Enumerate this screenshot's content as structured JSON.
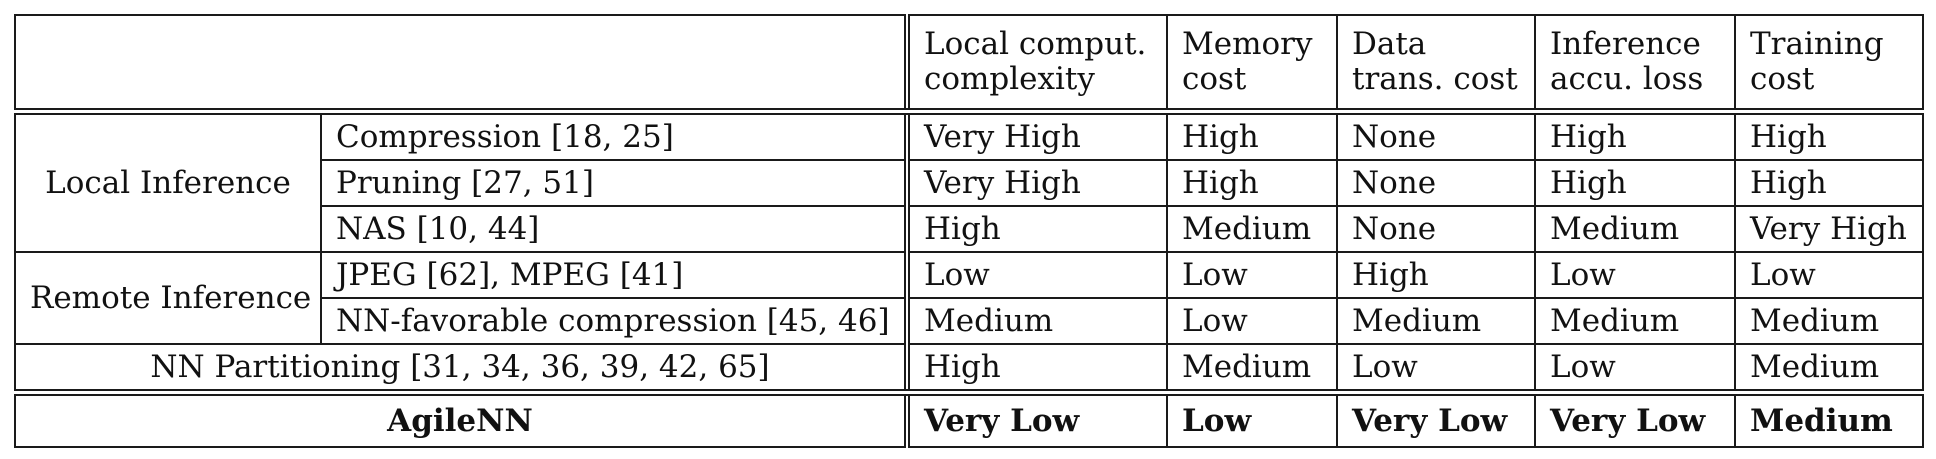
{
  "header": {
    "columns": [
      [
        "Local comput.",
        "complexity"
      ],
      [
        "Memory",
        "cost"
      ],
      [
        "Data",
        "trans. cost"
      ],
      [
        "Inference",
        "accu. loss"
      ],
      [
        "Training",
        "cost"
      ]
    ]
  },
  "groups": {
    "local": "Local Inference",
    "remote": "Remote Inference"
  },
  "rows": [
    {
      "method": "Compression [18, 25]",
      "values": [
        "Very High",
        "High",
        "None",
        "High",
        "High"
      ]
    },
    {
      "method": "Pruning [27, 51]",
      "values": [
        "Very High",
        "High",
        "None",
        "High",
        "High"
      ]
    },
    {
      "method": "NAS [10, 44]",
      "values": [
        "High",
        "Medium",
        "None",
        "Medium",
        "Very High"
      ]
    },
    {
      "method": "JPEG [62], MPEG [41]",
      "values": [
        "Low",
        "Low",
        "High",
        "Low",
        "Low"
      ]
    },
    {
      "method": "NN-favorable compression [45, 46]",
      "values": [
        "Medium",
        "Low",
        "Medium",
        "Medium",
        "Medium"
      ]
    },
    {
      "method": "NN Partitioning [31, 34, 36, 39, 42, 65]",
      "values": [
        "High",
        "Medium",
        "Low",
        "Low",
        "Medium"
      ]
    },
    {
      "method": "AgileNN",
      "values": [
        "Very Low",
        "Low",
        "Very Low",
        "Very Low",
        "Medium"
      ]
    }
  ]
}
